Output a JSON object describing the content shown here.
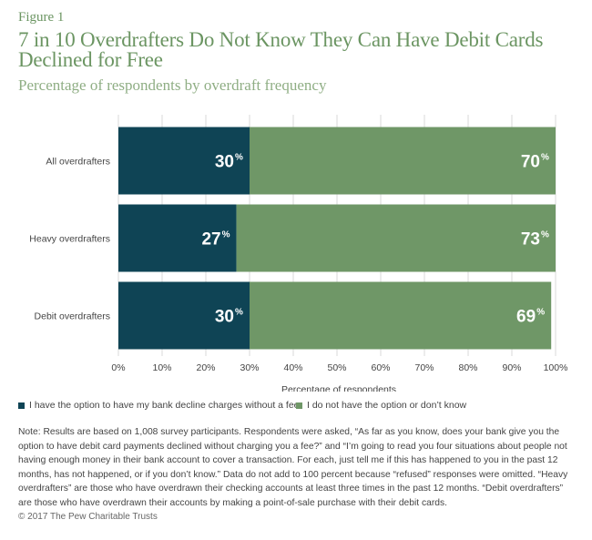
{
  "figure_label": "Figure 1",
  "title": "7 in 10 Overdrafters Do Not Know They Can Have Debit Cards Declined for Free",
  "subtitle": "Percentage of respondents by overdraft frequency",
  "colors": {
    "series1": "#0f4455",
    "series2": "#6f9767",
    "text_green": "#6b9562"
  },
  "chart_data": {
    "type": "bar",
    "orientation": "horizontal",
    "stacked": true,
    "categories": [
      "All overdrafters",
      "Heavy overdrafters",
      "Debit overdrafters"
    ],
    "series": [
      {
        "name": "I have the option to have my bank decline charges without a fee",
        "values": [
          30,
          27,
          30
        ]
      },
      {
        "name": "I do not have the option or don't know",
        "values": [
          70,
          73,
          69
        ]
      }
    ],
    "xlabel": "Percentage of respondents",
    "xlim": [
      0,
      100
    ],
    "xticks": [
      "0%",
      "10%",
      "20%",
      "30%",
      "40%",
      "50%",
      "60%",
      "70%",
      "80%",
      "90%",
      "100%"
    ],
    "grid": true,
    "legend_position": "bottom"
  },
  "legend": {
    "item1": "I have the option to have my bank decline charges without a fee",
    "item2": "I do not have the option or don’t know"
  },
  "note": "Note: Results are based on 1,008 survey participants. Respondents were asked, “As far as you know, does your bank give you the option to have debit card payments declined without charging you a fee?” and “I’m going to read you four situations about people not having enough money in their bank account to cover a transaction. For each, just tell me if this has happened to you in the past 12 months, has not happened, or if you don’t know.” Data do not add to 100 percent because “refused” responses were omitted. “Heavy overdrafters” are those who have overdrawn their checking accounts at least three times in the past 12 months. “Debit overdrafters” are those who have overdrawn their accounts by making a point-of-sale purchase with their debit cards.",
  "copyright": "© 2017 The Pew Charitable Trusts"
}
